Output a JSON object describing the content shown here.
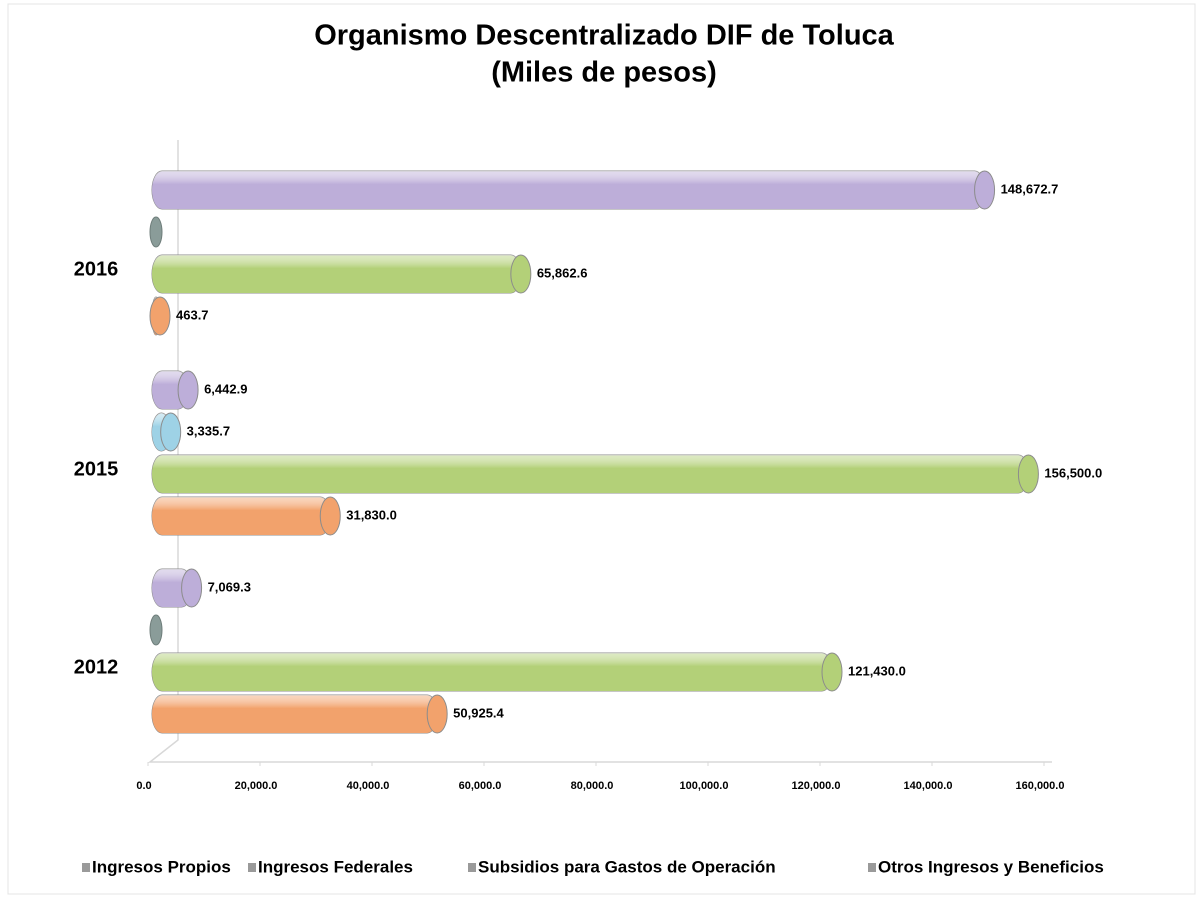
{
  "chart_data": {
    "type": "bar",
    "orientation": "horizontal",
    "title": "Organismo Descentralizado DIF de Toluca",
    "subtitle": "(Miles de pesos)",
    "categories": [
      "2012",
      "2015",
      "2016"
    ],
    "series": [
      {
        "name": "Ingresos Propios",
        "color": "#f2a26c",
        "values": [
          50925.4,
          31830.0,
          463.7
        ],
        "value_labels": [
          "50,925.4",
          "31,830.0",
          "463.7"
        ]
      },
      {
        "name": "Ingresos Federales",
        "color": "#b3d078",
        "values": [
          121430.0,
          156500.0,
          65862.6
        ],
        "value_labels": [
          "121,430.0",
          "156,500.0",
          "65,862.6"
        ]
      },
      {
        "name": "Subsidios para Gastos de Operación",
        "color": "#9ed2e6",
        "values": [
          null,
          3335.7,
          null
        ],
        "value_labels": [
          null,
          "3,335.7",
          null
        ]
      },
      {
        "name": "Otros Ingresos y Beneficios",
        "color": "#bdaed9",
        "values": [
          7069.3,
          6442.9,
          148672.7
        ],
        "value_labels": [
          "7,069.3",
          "6,442.9",
          "148,672.7"
        ]
      }
    ],
    "xlim": [
      0,
      160000
    ],
    "xticks": [
      {
        "value": 0,
        "label": "0.0"
      },
      {
        "value": 20000,
        "label": "20,000.0"
      },
      {
        "value": 40000,
        "label": "40,000.0"
      },
      {
        "value": 60000,
        "label": "60,000.0"
      },
      {
        "value": 80000,
        "label": "80,000.0"
      },
      {
        "value": 100000,
        "label": "100,000.0"
      },
      {
        "value": 120000,
        "label": "120,000.0"
      },
      {
        "value": 140000,
        "label": "140,000.0"
      },
      {
        "value": 160000,
        "label": "160,000.0"
      }
    ],
    "legend": "bottom",
    "grid": false
  }
}
